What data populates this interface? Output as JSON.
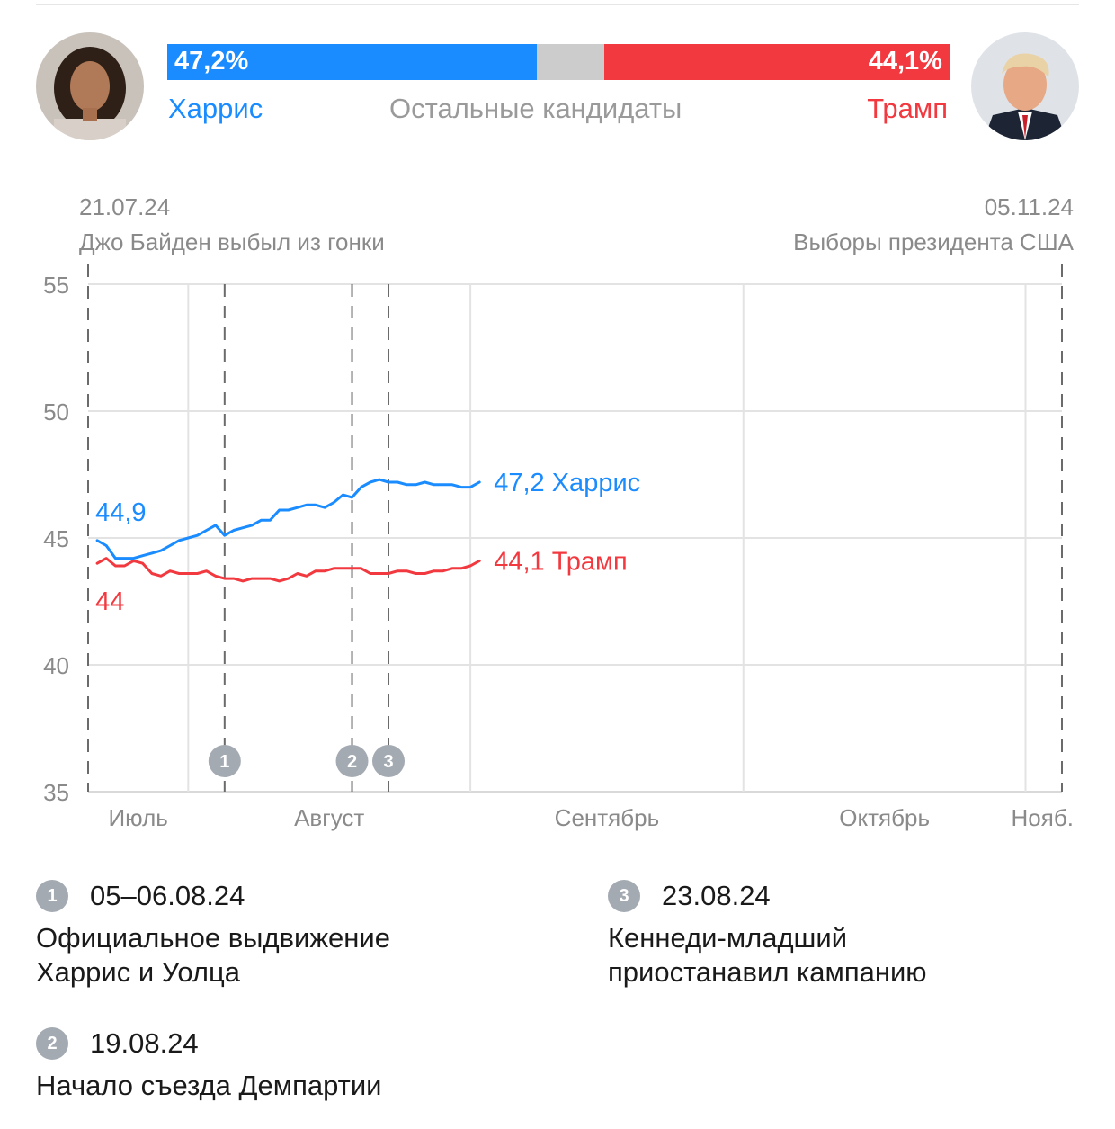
{
  "header": {
    "harris": {
      "name": "Харрис",
      "pct_label": "47,2%",
      "share": 47.2,
      "color": "#1a8cff",
      "avatar_icon": "harris-portrait"
    },
    "trump": {
      "name": "Трамп",
      "pct_label": "44,1%",
      "share": 44.1,
      "color": "#f2393f",
      "avatar_icon": "trump-portrait"
    },
    "others": {
      "name": "Остальные кандидаты",
      "share": 8.7,
      "color": "#cccccc"
    }
  },
  "range": {
    "start_date": "21.07.24",
    "start_event": "Джо Байден выбыл из гонки",
    "end_date": "05.11.24",
    "end_event": "Выборы президента США"
  },
  "chart_data": {
    "type": "line",
    "x_start": "2024-07-21",
    "x_end": "2024-11-05",
    "ylim": [
      35,
      55
    ],
    "yticks": [
      "35",
      "40",
      "45",
      "50",
      "55"
    ],
    "month_ticks": [
      {
        "label": "Июль",
        "date": "2024-07-21"
      },
      {
        "label": "Август",
        "date": "2024-08-01"
      },
      {
        "label": "Сентябрь",
        "date": "2024-09-01"
      },
      {
        "label": "Октябрь",
        "date": "2024-10-01"
      },
      {
        "label": "Нояб.",
        "date": "2024-11-01"
      }
    ],
    "grid": true,
    "events": [
      {
        "id": "1",
        "date": "2024-08-05"
      },
      {
        "id": "2",
        "date": "2024-08-19"
      },
      {
        "id": "3",
        "date": "2024-08-23"
      }
    ],
    "series": [
      {
        "name": "Харрис",
        "color": "#1a8cff",
        "start_label": "44,9",
        "end_label": "47,2 Харрис",
        "points": [
          [
            "2024-07-22",
            44.9
          ],
          [
            "2024-07-23",
            44.7
          ],
          [
            "2024-07-24",
            44.2
          ],
          [
            "2024-07-25",
            44.2
          ],
          [
            "2024-07-26",
            44.2
          ],
          [
            "2024-07-27",
            44.3
          ],
          [
            "2024-07-28",
            44.4
          ],
          [
            "2024-07-29",
            44.5
          ],
          [
            "2024-07-30",
            44.7
          ],
          [
            "2024-07-31",
            44.9
          ],
          [
            "2024-08-01",
            45.0
          ],
          [
            "2024-08-02",
            45.1
          ],
          [
            "2024-08-03",
            45.3
          ],
          [
            "2024-08-04",
            45.5
          ],
          [
            "2024-08-05",
            45.1
          ],
          [
            "2024-08-06",
            45.3
          ],
          [
            "2024-08-07",
            45.4
          ],
          [
            "2024-08-08",
            45.5
          ],
          [
            "2024-08-09",
            45.7
          ],
          [
            "2024-08-10",
            45.7
          ],
          [
            "2024-08-11",
            46.1
          ],
          [
            "2024-08-12",
            46.1
          ],
          [
            "2024-08-13",
            46.2
          ],
          [
            "2024-08-14",
            46.3
          ],
          [
            "2024-08-15",
            46.3
          ],
          [
            "2024-08-16",
            46.2
          ],
          [
            "2024-08-17",
            46.4
          ],
          [
            "2024-08-18",
            46.7
          ],
          [
            "2024-08-19",
            46.6
          ],
          [
            "2024-08-20",
            47.0
          ],
          [
            "2024-08-21",
            47.2
          ],
          [
            "2024-08-22",
            47.3
          ],
          [
            "2024-08-23",
            47.2
          ],
          [
            "2024-08-24",
            47.2
          ],
          [
            "2024-08-25",
            47.1
          ],
          [
            "2024-08-26",
            47.1
          ],
          [
            "2024-08-27",
            47.2
          ],
          [
            "2024-08-28",
            47.1
          ],
          [
            "2024-08-29",
            47.1
          ],
          [
            "2024-08-30",
            47.1
          ],
          [
            "2024-08-31",
            47.0
          ],
          [
            "2024-09-01",
            47.0
          ],
          [
            "2024-09-02",
            47.2
          ]
        ]
      },
      {
        "name": "Трамп",
        "color": "#f2393f",
        "start_label": "44",
        "end_label": "44,1 Трамп",
        "points": [
          [
            "2024-07-22",
            44.0
          ],
          [
            "2024-07-23",
            44.2
          ],
          [
            "2024-07-24",
            43.9
          ],
          [
            "2024-07-25",
            43.9
          ],
          [
            "2024-07-26",
            44.1
          ],
          [
            "2024-07-27",
            44.0
          ],
          [
            "2024-07-28",
            43.6
          ],
          [
            "2024-07-29",
            43.5
          ],
          [
            "2024-07-30",
            43.7
          ],
          [
            "2024-07-31",
            43.6
          ],
          [
            "2024-08-01",
            43.6
          ],
          [
            "2024-08-02",
            43.6
          ],
          [
            "2024-08-03",
            43.7
          ],
          [
            "2024-08-04",
            43.5
          ],
          [
            "2024-08-05",
            43.4
          ],
          [
            "2024-08-06",
            43.4
          ],
          [
            "2024-08-07",
            43.3
          ],
          [
            "2024-08-08",
            43.4
          ],
          [
            "2024-08-09",
            43.4
          ],
          [
            "2024-08-10",
            43.4
          ],
          [
            "2024-08-11",
            43.3
          ],
          [
            "2024-08-12",
            43.4
          ],
          [
            "2024-08-13",
            43.6
          ],
          [
            "2024-08-14",
            43.5
          ],
          [
            "2024-08-15",
            43.7
          ],
          [
            "2024-08-16",
            43.7
          ],
          [
            "2024-08-17",
            43.8
          ],
          [
            "2024-08-18",
            43.8
          ],
          [
            "2024-08-19",
            43.8
          ],
          [
            "2024-08-20",
            43.8
          ],
          [
            "2024-08-21",
            43.6
          ],
          [
            "2024-08-22",
            43.6
          ],
          [
            "2024-08-23",
            43.6
          ],
          [
            "2024-08-24",
            43.7
          ],
          [
            "2024-08-25",
            43.7
          ],
          [
            "2024-08-26",
            43.6
          ],
          [
            "2024-08-27",
            43.6
          ],
          [
            "2024-08-28",
            43.7
          ],
          [
            "2024-08-29",
            43.7
          ],
          [
            "2024-08-30",
            43.8
          ],
          [
            "2024-08-31",
            43.8
          ],
          [
            "2024-09-01",
            43.9
          ],
          [
            "2024-09-02",
            44.1
          ]
        ]
      }
    ]
  },
  "notes": [
    {
      "id": "1",
      "date": "05–06.08.24",
      "text": "Официальное выдвижение Харрис и Уолца"
    },
    {
      "id": "2",
      "date": "19.08.24",
      "text": "Начало съезда Демпартии"
    },
    {
      "id": "3",
      "date": "23.08.24",
      "text": "Кеннеди-младший приостанавил кампанию"
    }
  ]
}
